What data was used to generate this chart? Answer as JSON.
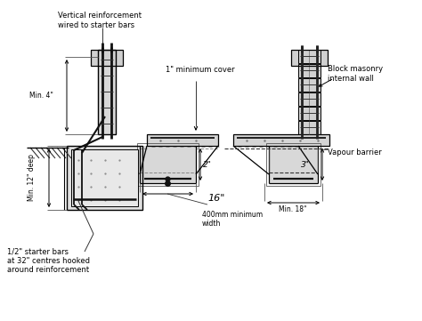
{
  "bg_color": "#ffffff",
  "line_color": "#000000",
  "text_color": "#000000",
  "labels": {
    "vert_reinf": "Vertical reinforcement\nwired to starter bars",
    "min_cover": "1\" minimum cover",
    "block_masonry": "Block masonry\ninternal wall",
    "min_4": "Min. 4\"",
    "min_12": "Min. 12\" deep",
    "min_18": "Min. 18\"",
    "dim_16": "16\"",
    "dim_400": "400mm minimum\nwidth",
    "vapour": "Vapour barrier",
    "starter": "1/2\" starter bars\nat 32\" centres hooked\naround reinforcement",
    "dim_2": "2\"",
    "dim_3": "3\""
  }
}
